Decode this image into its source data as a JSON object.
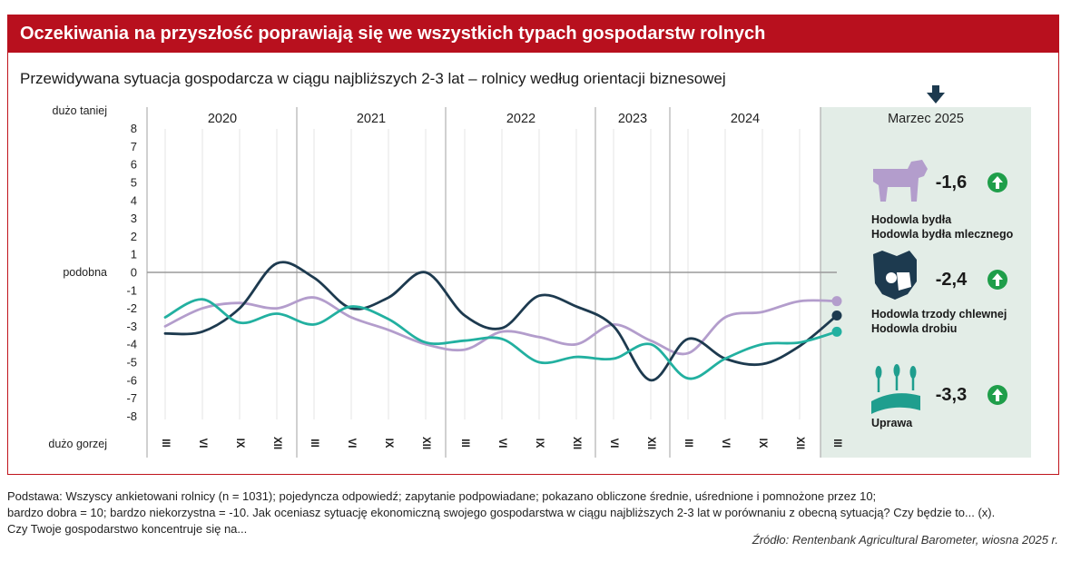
{
  "header": {
    "title": "Oczekiwania na przyszłość poprawiają się we wszystkich typach gospodarstw rolnych",
    "subtitle": "Przewidywana sytuacja gospodarcza w ciągu najbliższych 2-3 lat – rolnicy według orientacji biznesowej"
  },
  "chart_data": {
    "type": "line",
    "y_top_label": "dużo taniej",
    "y_mid_label": "podobna",
    "y_bottom_label": "dużo gorzej",
    "ylim": [
      -8,
      8
    ],
    "yticks": [
      8,
      7,
      6,
      5,
      4,
      3,
      2,
      1,
      0,
      -1,
      -2,
      -3,
      -4,
      -5,
      -6,
      -7,
      -8
    ],
    "years": [
      "2020",
      "2021",
      "2022",
      "2023",
      "2024"
    ],
    "latest_label": "Marzec 2025",
    "x": [
      "III",
      "VI",
      "IX",
      "XII",
      "III",
      "VI",
      "IX",
      "XII",
      "III",
      "VI",
      "IX",
      "XII",
      "VI",
      "XII",
      "III",
      "VI",
      "IX",
      "XII",
      "III"
    ],
    "series": [
      {
        "key": "bydlo",
        "color": "#b39dcc",
        "values": [
          -3.0,
          -2.0,
          -1.7,
          -2.0,
          -1.4,
          -2.5,
          -3.2,
          -4.0,
          -4.3,
          -3.3,
          -3.6,
          -4.0,
          -2.9,
          -3.8,
          -4.5,
          -2.5,
          -2.2,
          -1.6,
          -1.6
        ]
      },
      {
        "key": "trzoda",
        "color": "#1d3a4f",
        "values": [
          -3.4,
          -3.3,
          -2.0,
          0.5,
          -0.3,
          -2.0,
          -1.4,
          0.0,
          -2.4,
          -3.1,
          -1.3,
          -1.9,
          -3.0,
          -6.0,
          -3.7,
          -4.8,
          -5.1,
          -4.1,
          -2.4
        ]
      },
      {
        "key": "uprawa",
        "color": "#22b0a0",
        "values": [
          -2.5,
          -1.5,
          -2.8,
          -2.3,
          -2.9,
          -1.9,
          -2.6,
          -3.9,
          -3.8,
          -3.7,
          -5.0,
          -4.7,
          -4.8,
          -4.0,
          -5.9,
          -4.8,
          -4.0,
          -3.9,
          -3.3
        ]
      }
    ],
    "legend": [
      {
        "icon": "cow-icon",
        "value": "-1,6",
        "labels": [
          "Hodowla bydła",
          "Hodowla bydła mlecznego"
        ],
        "color": "#b39dcc"
      },
      {
        "icon": "pig-chicken-icon",
        "value": "-2,4",
        "labels": [
          "Hodowla trzody chlewnej",
          "Hodowla drobiu"
        ],
        "color": "#1d3a4f"
      },
      {
        "icon": "field-wheat-icon",
        "value": "-3,3",
        "labels": [
          "Uprawa"
        ],
        "color": "#22b0a0"
      }
    ],
    "trend_color": "#1f9e4a",
    "highlight_bg": "#e3ede7"
  },
  "footer": {
    "line1": "Podstawa: Wszyscy ankietowani rolnicy (n = 1031); pojedyncza odpowiedź; zapytanie podpowiadane; pokazano obliczone średnie, uśrednione i pomnożone przez 10;",
    "line2": "bardzo dobra = 10; bardzo niekorzystna = -10. Jak oceniasz sytuację ekonomiczną swojego gospodarstwa w ciągu najbliższych 2-3 lat w porównaniu z obecną sytuacją? Czy będzie to... (x).",
    "line3": "Czy Twoje gospodarstwo koncentruje się na...",
    "source": "Źródło: Rentenbank Agricultural Barometer, wiosna 2025 r."
  }
}
